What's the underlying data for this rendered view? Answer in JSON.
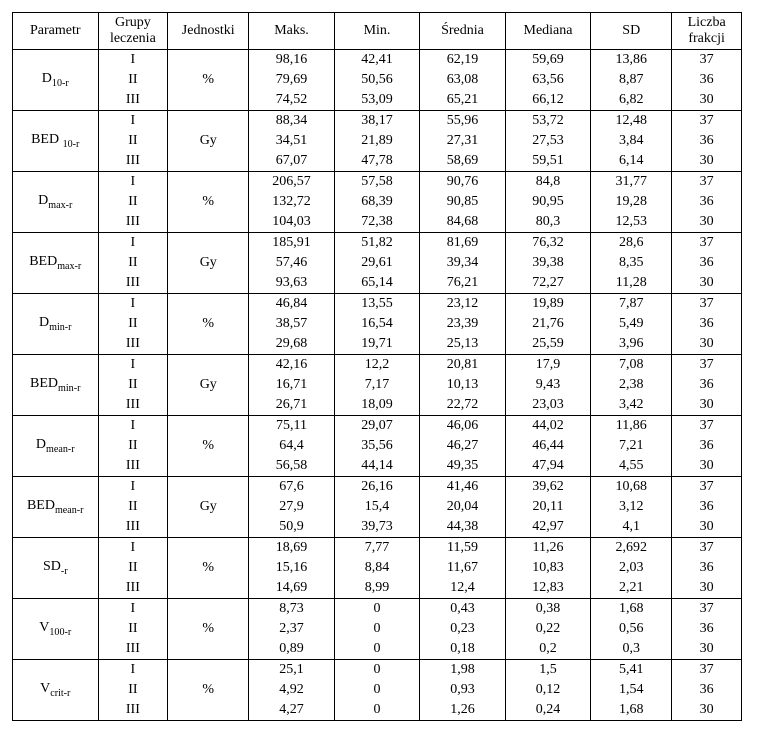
{
  "headers": {
    "param": "Parametr",
    "group": "Grupy leczenia",
    "unit": "Jednostki",
    "max": "Maks.",
    "min": "Min.",
    "mean": "Średnia",
    "median": "Mediana",
    "sd": "SD",
    "frak": "Liczba frakcji"
  },
  "group_labels": [
    "I",
    "II",
    "III"
  ],
  "rows": [
    {
      "param_html": "D<sub>10-r</sub>",
      "unit": "%",
      "v": [
        {
          "max": "98,16",
          "min": "42,41",
          "mean": "62,19",
          "median": "59,69",
          "sd": "13,86",
          "frak": "37"
        },
        {
          "max": "79,69",
          "min": "50,56",
          "mean": "63,08",
          "median": "63,56",
          "sd": "8,87",
          "frak": "36"
        },
        {
          "max": "74,52",
          "min": "53,09",
          "mean": "65,21",
          "median": "66,12",
          "sd": "6,82",
          "frak": "30"
        }
      ]
    },
    {
      "param_html": "BED <sub>10-r</sub>",
      "unit": "Gy",
      "v": [
        {
          "max": "88,34",
          "min": "38,17",
          "mean": "55,96",
          "median": "53,72",
          "sd": "12,48",
          "frak": "37"
        },
        {
          "max": "34,51",
          "min": "21,89",
          "mean": "27,31",
          "median": "27,53",
          "sd": "3,84",
          "frak": "36"
        },
        {
          "max": "67,07",
          "min": "47,78",
          "mean": "58,69",
          "median": "59,51",
          "sd": "6,14",
          "frak": "30"
        }
      ]
    },
    {
      "param_html": "D<sub>max-r</sub>",
      "unit": "%",
      "v": [
        {
          "max": "206,57",
          "min": "57,58",
          "mean": "90,76",
          "median": "84,8",
          "sd": "31,77",
          "frak": "37"
        },
        {
          "max": "132,72",
          "min": "68,39",
          "mean": "90,85",
          "median": "90,95",
          "sd": "19,28",
          "frak": "36"
        },
        {
          "max": "104,03",
          "min": "72,38",
          "mean": "84,68",
          "median": "80,3",
          "sd": "12,53",
          "frak": "30"
        }
      ]
    },
    {
      "param_html": "BED<sub>max-r</sub>",
      "unit": "Gy",
      "v": [
        {
          "max": "185,91",
          "min": "51,82",
          "mean": "81,69",
          "median": "76,32",
          "sd": "28,6",
          "frak": "37"
        },
        {
          "max": "57,46",
          "min": "29,61",
          "mean": "39,34",
          "median": "39,38",
          "sd": "8,35",
          "frak": "36"
        },
        {
          "max": "93,63",
          "min": "65,14",
          "mean": "76,21",
          "median": "72,27",
          "sd": "11,28",
          "frak": "30"
        }
      ]
    },
    {
      "param_html": "D<sub>min-r</sub>",
      "unit": "%",
      "v": [
        {
          "max": "46,84",
          "min": "13,55",
          "mean": "23,12",
          "median": "19,89",
          "sd": "7,87",
          "frak": "37"
        },
        {
          "max": "38,57",
          "min": "16,54",
          "mean": "23,39",
          "median": "21,76",
          "sd": "5,49",
          "frak": "36"
        },
        {
          "max": "29,68",
          "min": "19,71",
          "mean": "25,13",
          "median": "25,59",
          "sd": "3,96",
          "frak": "30"
        }
      ]
    },
    {
      "param_html": "BED<sub>min-r</sub>",
      "unit": "Gy",
      "v": [
        {
          "max": "42,16",
          "min": "12,2",
          "mean": "20,81",
          "median": "17,9",
          "sd": "7,08",
          "frak": "37"
        },
        {
          "max": "16,71",
          "min": "7,17",
          "mean": "10,13",
          "median": "9,43",
          "sd": "2,38",
          "frak": "36"
        },
        {
          "max": "26,71",
          "min": "18,09",
          "mean": "22,72",
          "median": "23,03",
          "sd": "3,42",
          "frak": "30"
        }
      ]
    },
    {
      "param_html": "D<sub>mean-r</sub>",
      "unit": "%",
      "v": [
        {
          "max": "75,11",
          "min": "29,07",
          "mean": "46,06",
          "median": "44,02",
          "sd": "11,86",
          "frak": "37"
        },
        {
          "max": "64,4",
          "min": "35,56",
          "mean": "46,27",
          "median": "46,44",
          "sd": "7,21",
          "frak": "36"
        },
        {
          "max": "56,58",
          "min": "44,14",
          "mean": "49,35",
          "median": "47,94",
          "sd": "4,55",
          "frak": "30"
        }
      ]
    },
    {
      "param_html": "BED<sub>mean-r</sub>",
      "unit": "Gy",
      "v": [
        {
          "max": "67,6",
          "min": "26,16",
          "mean": "41,46",
          "median": "39,62",
          "sd": "10,68",
          "frak": "37"
        },
        {
          "max": "27,9",
          "min": "15,4",
          "mean": "20,04",
          "median": "20,11",
          "sd": "3,12",
          "frak": "36"
        },
        {
          "max": "50,9",
          "min": "39,73",
          "mean": "44,38",
          "median": "42,97",
          "sd": "4,1",
          "frak": "30"
        }
      ]
    },
    {
      "param_html": "SD<sub>-r</sub>",
      "unit": "%",
      "v": [
        {
          "max": "18,69",
          "min": "7,77",
          "mean": "11,59",
          "median": "11,26",
          "sd": "2,692",
          "frak": "37"
        },
        {
          "max": "15,16",
          "min": "8,84",
          "mean": "11,67",
          "median": "10,83",
          "sd": "2,03",
          "frak": "36"
        },
        {
          "max": "14,69",
          "min": "8,99",
          "mean": "12,4",
          "median": "12,83",
          "sd": "2,21",
          "frak": "30"
        }
      ]
    },
    {
      "param_html": "V<sub>100-r</sub>",
      "unit": "%",
      "v": [
        {
          "max": "8,73",
          "min": "0",
          "mean": "0,43",
          "median": "0,38",
          "sd": "1,68",
          "frak": "37"
        },
        {
          "max": "2,37",
          "min": "0",
          "mean": "0,23",
          "median": "0,22",
          "sd": "0,56",
          "frak": "36"
        },
        {
          "max": "0,89",
          "min": "0",
          "mean": "0,18",
          "median": "0,2",
          "sd": "0,3",
          "frak": "30"
        }
      ]
    },
    {
      "param_html": "V<sub>crit-r</sub>",
      "unit": "%",
      "v": [
        {
          "max": "25,1",
          "min": "0",
          "mean": "1,98",
          "median": "1,5",
          "sd": "5,41",
          "frak": "37"
        },
        {
          "max": "4,92",
          "min": "0",
          "mean": "0,93",
          "median": "0,12",
          "sd": "1,54",
          "frak": "36"
        },
        {
          "max": "4,27",
          "min": "0",
          "mean": "1,26",
          "median": "0,24",
          "sd": "1,68",
          "frak": "30"
        }
      ]
    }
  ]
}
